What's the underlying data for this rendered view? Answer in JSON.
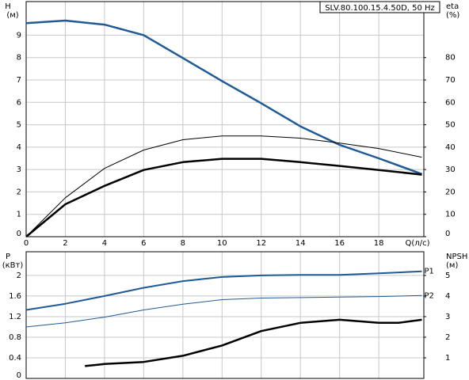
{
  "chart_data": [
    {
      "type": "line",
      "title": "SLV.80.100.15.4.50D, 50 Hz",
      "ylabel": "H",
      "ylabel_unit": "(м)",
      "y2label": "eta",
      "y2label_unit": "(%)",
      "xlabel": "Q(л/с)",
      "xlim": [
        0,
        20.3
      ],
      "xticks": [
        0,
        2,
        4,
        6,
        8,
        10,
        12,
        14,
        16,
        18
      ],
      "ylim": [
        0,
        10.5
      ],
      "yticks": [
        0,
        1,
        2,
        3,
        4,
        5,
        6,
        7,
        8,
        9
      ],
      "y2lim": [
        0,
        105
      ],
      "y2ticks": [
        0,
        10,
        20,
        30,
        40,
        50,
        60,
        70,
        80
      ],
      "grid": true,
      "series": [
        {
          "color": "#1f5a96",
          "width": 2.5,
          "x": [
            0,
            2,
            4,
            6,
            8,
            10,
            12,
            14,
            16,
            18,
            20.2
          ],
          "values": [
            9.54,
            9.65,
            9.47,
            9.0,
            7.98,
            6.95,
            5.96,
            4.93,
            4.1,
            3.5,
            2.8
          ]
        },
        {
          "color": "#000000",
          "width": 1,
          "axis": "y2",
          "x": [
            0,
            2,
            4,
            6,
            8,
            10,
            12,
            14,
            16,
            18,
            20.2
          ],
          "values": [
            0,
            17.4,
            30.5,
            38.7,
            43.3,
            45,
            45,
            44,
            41.8,
            39.4,
            35.5
          ]
        },
        {
          "color": "#000000",
          "width": 2.5,
          "axis": "y2",
          "x": [
            0,
            2,
            4,
            6,
            8,
            10,
            12,
            14,
            16,
            18,
            20.2
          ],
          "values": [
            0,
            14.5,
            22.7,
            29.8,
            33.3,
            34.8,
            34.8,
            33.3,
            31.6,
            29.8,
            27.7
          ]
        }
      ]
    },
    {
      "type": "line",
      "ylabel": "P",
      "ylabel_unit": "(кВт)",
      "y2label": "NPSH",
      "y2label_unit": "(м)",
      "xlim": [
        0,
        20.3
      ],
      "xticks": [
        0,
        2,
        4,
        6,
        8,
        10,
        12,
        14,
        16,
        18
      ],
      "ylim": [
        0,
        2.46
      ],
      "yticks": [
        0,
        0.4,
        0.8,
        1.2,
        1.6,
        2
      ],
      "y2lim": [
        0,
        6.15
      ],
      "y2ticks": [
        1,
        2,
        3,
        4,
        5
      ],
      "grid": true,
      "series": [
        {
          "name": "P1",
          "color": "#1f5a96",
          "width": 2,
          "x": [
            0,
            2,
            4,
            6,
            8,
            10,
            12,
            14,
            16,
            18,
            20.2
          ],
          "values": [
            1.33,
            1.45,
            1.6,
            1.76,
            1.89,
            1.97,
            2.0,
            2.01,
            2.01,
            2.04,
            2.08
          ]
        },
        {
          "name": "P2",
          "color": "#1f5a96",
          "width": 1,
          "x": [
            0,
            2,
            4,
            6,
            8,
            10,
            12,
            14,
            16,
            18,
            20.2
          ],
          "values": [
            1.0,
            1.08,
            1.19,
            1.33,
            1.44,
            1.53,
            1.56,
            1.57,
            1.58,
            1.59,
            1.61
          ]
        },
        {
          "color": "#000000",
          "width": 2.5,
          "axis": "y2",
          "x": [
            3,
            4,
            6,
            8,
            10,
            12,
            14,
            16,
            18,
            19,
            20.2
          ],
          "values": [
            0.6,
            0.7,
            0.8,
            1.1,
            1.6,
            2.3,
            2.7,
            2.85,
            2.7,
            2.7,
            2.85
          ]
        }
      ]
    }
  ]
}
